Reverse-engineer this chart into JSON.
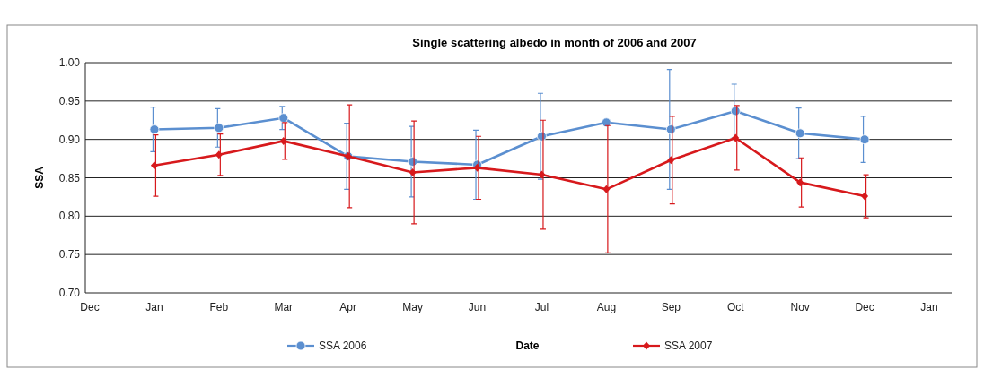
{
  "chart_data": {
    "type": "line",
    "title": "Single scattering albedo in month of 2006 and 2007",
    "xlabel": "Date",
    "ylabel": "SSA",
    "categories": [
      "Dec",
      "Jan",
      "Feb",
      "Mar",
      "Apr",
      "May",
      "Jun",
      "Jul",
      "Aug",
      "Sep",
      "Oct",
      "Nov",
      "Dec",
      "Jan"
    ],
    "ylim": [
      0.7,
      1.0
    ],
    "yticks": [
      {
        "value": 0.7,
        "label": "0.70"
      },
      {
        "value": 0.75,
        "label": "0.75"
      },
      {
        "value": 0.8,
        "label": "0.80"
      },
      {
        "value": 0.85,
        "label": "0.85"
      },
      {
        "value": 0.9,
        "label": "0.90"
      },
      {
        "value": 0.95,
        "label": "0.95"
      },
      {
        "value": 1.0,
        "label": "1.00"
      }
    ],
    "grid": "y",
    "legend": "bottom",
    "series": [
      {
        "name": "SSA 2006",
        "color": "#5b8fd0",
        "marker": "circle",
        "values": [
          null,
          0.913,
          0.915,
          0.928,
          0.878,
          0.871,
          0.867,
          0.904,
          0.922,
          0.913,
          0.937,
          0.908,
          0.9,
          null
        ],
        "errors": [
          null,
          0.029,
          0.025,
          0.015,
          0.043,
          0.046,
          0.045,
          0.056,
          null,
          0.078,
          0.035,
          0.033,
          0.03,
          null
        ]
      },
      {
        "name": "SSA 2007",
        "color": "#d7191c",
        "marker": "diamond",
        "values": [
          null,
          0.866,
          0.88,
          0.898,
          0.878,
          0.857,
          0.863,
          0.854,
          0.835,
          0.873,
          0.902,
          0.844,
          0.826,
          null
        ],
        "errors": [
          null,
          0.04,
          0.027,
          0.024,
          0.067,
          0.067,
          0.041,
          0.071,
          0.083,
          0.057,
          0.042,
          0.032,
          0.028,
          null
        ]
      }
    ]
  }
}
